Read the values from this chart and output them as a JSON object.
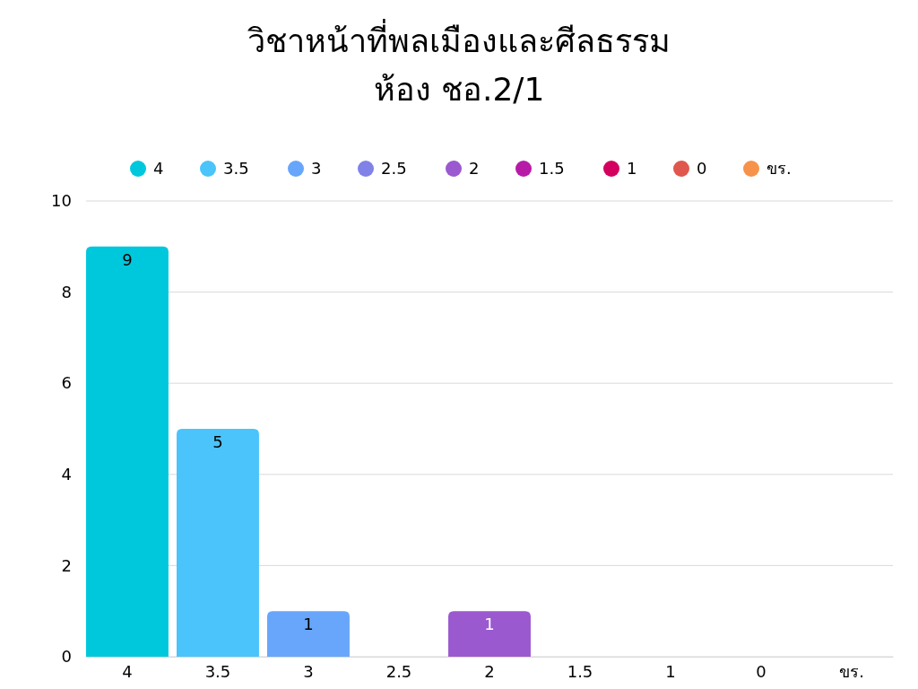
{
  "chart_data": {
    "type": "bar",
    "title": "วิชาหน้าที่พลเมืองและศีลธรรม",
    "subtitle": "ห้อง ชอ.2/1",
    "categories": [
      "4",
      "3.5",
      "3",
      "2.5",
      "2",
      "1.5",
      "1",
      "0",
      "ขร."
    ],
    "series": [
      {
        "name": "4",
        "color": "#00c8dc",
        "values": [
          9,
          null,
          null,
          null,
          null,
          null,
          null,
          null,
          null
        ],
        "value_labels": [
          "9",
          null,
          null,
          null,
          null,
          null,
          null,
          null,
          null
        ]
      },
      {
        "name": "3.5",
        "color": "#4ac4fb",
        "values": [
          null,
          5,
          null,
          null,
          null,
          null,
          null,
          null,
          null
        ],
        "value_labels": [
          null,
          "5",
          null,
          null,
          null,
          null,
          null,
          null,
          null
        ]
      },
      {
        "name": "3",
        "color": "#67a6fb",
        "values": [
          null,
          null,
          1,
          null,
          null,
          null,
          null,
          null,
          null
        ],
        "value_labels": [
          null,
          null,
          "1",
          null,
          null,
          null,
          null,
          null,
          null
        ]
      },
      {
        "name": "2.5",
        "color": "#8082e8",
        "values": [
          null,
          null,
          null,
          0,
          null,
          null,
          null,
          null,
          null
        ],
        "value_labels": [
          null,
          null,
          null,
          null,
          null,
          null,
          null,
          null,
          null
        ]
      },
      {
        "name": "2",
        "color": "#9b59d0",
        "values": [
          null,
          null,
          null,
          null,
          1,
          null,
          null,
          null,
          null
        ],
        "value_labels": [
          null,
          null,
          null,
          null,
          "1",
          null,
          null,
          null,
          null
        ]
      },
      {
        "name": "1.5",
        "color": "#b81aa8",
        "values": [
          null,
          null,
          null,
          null,
          null,
          0,
          null,
          null,
          null
        ],
        "value_labels": [
          null,
          null,
          null,
          null,
          null,
          null,
          null,
          null,
          null
        ]
      },
      {
        "name": "1",
        "color": "#d4005f",
        "values": [
          null,
          null,
          null,
          null,
          null,
          null,
          0,
          null,
          null
        ],
        "value_labels": [
          null,
          null,
          null,
          null,
          null,
          null,
          null,
          null,
          null
        ]
      },
      {
        "name": "0",
        "color": "#e0574d",
        "values": [
          null,
          null,
          null,
          null,
          null,
          null,
          null,
          0,
          null
        ],
        "value_labels": [
          null,
          null,
          null,
          null,
          null,
          null,
          null,
          null,
          null
        ]
      },
      {
        "name": "ขร.",
        "color": "#f7924a",
        "values": [
          null,
          null,
          null,
          null,
          null,
          null,
          null,
          null,
          0
        ],
        "value_labels": [
          null,
          null,
          null,
          null,
          null,
          null,
          null,
          null,
          null
        ]
      }
    ],
    "ylim": [
      0,
      10
    ],
    "yticks": [
      0,
      2,
      4,
      6,
      8,
      10
    ],
    "grid": "y",
    "legend": "top"
  }
}
